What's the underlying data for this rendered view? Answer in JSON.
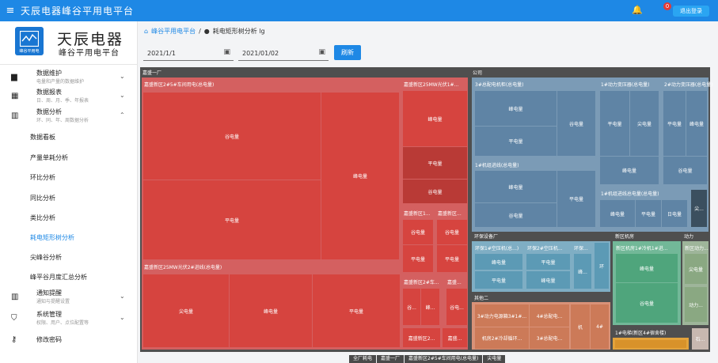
{
  "topbar": {
    "title": "天辰电器峰谷平用电平台",
    "badge": "0",
    "logout": "退出登录"
  },
  "brand": {
    "name": "天辰电器",
    "sub": "峰谷平用电平台",
    "logo_text": "峰谷平用电"
  },
  "nav": {
    "groups": [
      {
        "title": "数据维护",
        "sub": "电量和产量的数据维护",
        "icon": "monitor-icon",
        "y": 0
      },
      {
        "title": "数据报表",
        "sub": "日、周、月、季、年报表",
        "icon": "report-icon",
        "y": 24
      },
      {
        "title": "数据分析",
        "sub": "环、同、年、周数据分析",
        "icon": "chart-icon",
        "y": 48
      }
    ],
    "items": [
      "数据看板",
      "产量单耗分析",
      "环比分析",
      "同比分析",
      "类比分析",
      "耗电矩形树分析",
      "尖峰谷分析",
      "峰平谷月度汇总分析"
    ],
    "lower": [
      {
        "title": "通知提醒",
        "sub": "通知与提醒设置"
      },
      {
        "title": "系统管理",
        "sub": "权限、用户、点位配置等"
      }
    ],
    "change_password": "修改密码"
  },
  "breadcrumb": {
    "home": "峰谷平用电平台",
    "sep": "/",
    "current": "耗电矩形树分析 lg"
  },
  "filters": {
    "start_date": "2021/1/1",
    "end_date": "2021/01/02",
    "query": "刷新"
  },
  "treemap": {
    "left_header": "嘉盛一厂",
    "l1": "嘉盛新区2#5#车间用电(总电量)",
    "l1_cells": [
      "谷电量",
      "峰电量",
      "平电量"
    ],
    "l2": "嘉盛新区25MW光伏1#...",
    "l2_cells": [
      "峰电量",
      "平电量",
      "谷电量"
    ],
    "l3": "嘉盛新区25MW光伏2#进线(总电量)",
    "l3_cells": [
      "尖电量",
      "峰电量",
      "平电量"
    ],
    "l4a": "嘉盛新区1...",
    "l4a_cells": [
      "谷电量",
      "平电量"
    ],
    "l4b": "嘉盛新区...",
    "l4b_cells": [
      "谷电量",
      "平电量"
    ],
    "l5a": "嘉盛新区2#车...",
    "l5a_cells": [
      "谷...",
      "峰..."
    ],
    "l5b": "嘉盛...",
    "l5b_cells": [
      "谷电..."
    ],
    "l6a": "嘉盛新区2...",
    "l6b": "嘉盛...",
    "right_header": "公司",
    "r1": "3#总配电机柜(总电量)",
    "r1_cells": [
      "峰电量",
      "谷电量",
      "平电量"
    ],
    "r2": "1#动力变压器(总电量)",
    "r2_cells": [
      "平电量",
      "尖电量",
      "峰电量"
    ],
    "r3": "2#动力变压器(总电量)",
    "r3_cells": [
      "平电量",
      "峰电量",
      "谷电量"
    ],
    "r4": "1#机组进线(总电量)",
    "r4_cells": [
      "峰电量",
      "谷电量",
      "平电量"
    ],
    "r5": "1#机组进线总电量(总电量)",
    "r5_cells": [
      "峰电量",
      "平电量",
      "日电量"
    ],
    "r6_cell": "尖...",
    "env_header": "环保设备厂",
    "e1": "环保1#空压机(总...)",
    "e1_cells": [
      "峰电量",
      "平电量"
    ],
    "e2": "环保2#空压机...",
    "e2_cells": [
      "平电量",
      "峰电量"
    ],
    "e3": "环保...",
    "e3_cells": [
      "峰..."
    ],
    "e4": "环",
    "new_header": "新区机房",
    "n1": "新区机房1#冷机1#进...",
    "n1_cells": [
      "峰电量",
      "谷电量"
    ],
    "power_header": "动力",
    "p1": "新区动力...",
    "p1_cells": [
      "尖电量"
    ],
    "p2_cell": "动力...",
    "p3_cell": "石...",
    "misc_header": "其他二",
    "m1": "3#动力电源箱3#1#...",
    "m2": "4#总配电...",
    "m3": "机房2#冷却循环...",
    "m4": "3#总配电...",
    "m5": "机",
    "m6": "4#",
    "bottom_label": "1#电梯(新区4#宿舍楼)"
  },
  "footer_path": [
    "全厂耗电",
    "嘉盛一厂",
    "嘉盛新区2#5#车间用电(总电量)",
    "尖电量"
  ]
}
